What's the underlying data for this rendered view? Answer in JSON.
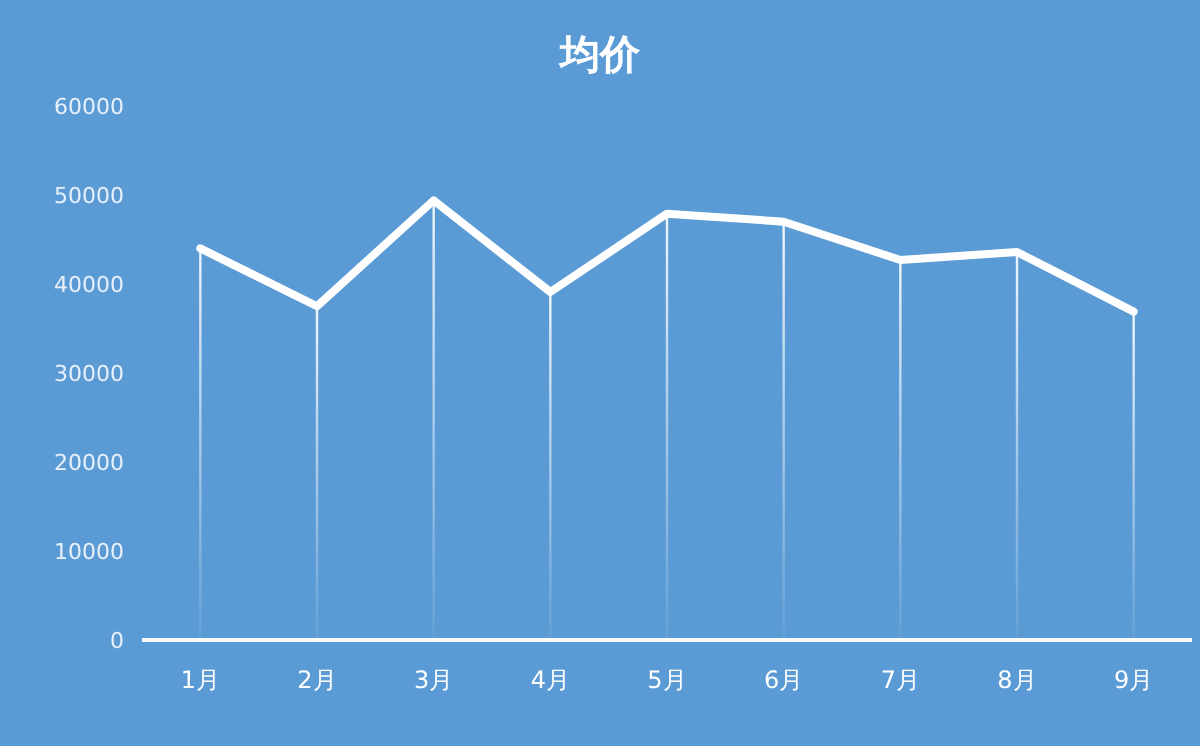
{
  "chart_data": {
    "type": "line",
    "title": "均价",
    "categories": [
      "1月",
      "2月",
      "3月",
      "4月",
      "5月",
      "6月",
      "7月",
      "8月",
      "9月"
    ],
    "series": [
      {
        "color": "#ffffff",
        "values": [
          44000,
          37500,
          49400,
          39100,
          47900,
          47000,
          42700,
          43600,
          36900
        ]
      },
      {
        "type": "bar",
        "color": "#ffffff",
        "values": [
          44000,
          37500,
          49400,
          39100,
          47900,
          47000,
          42700,
          43600,
          36900
        ]
      }
    ],
    "ylim": [
      0,
      60000
    ],
    "yticks": [
      0,
      10000,
      20000,
      30000,
      40000,
      50000,
      60000
    ],
    "marker": "none",
    "line_style": "solid"
  }
}
